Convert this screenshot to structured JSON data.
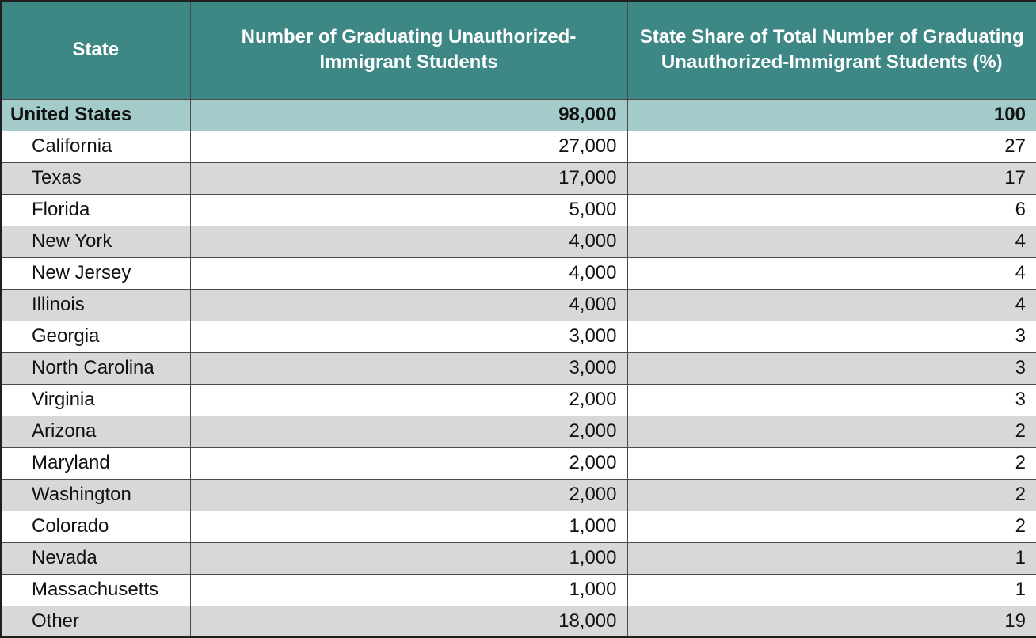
{
  "headers": {
    "state": "State",
    "count": "Number of Graduating Unauthorized-Immigrant Students",
    "share": "State Share of Total Number of Graduating Unauthorized-Immigrant Students (%)"
  },
  "total": {
    "state": "United States",
    "count": "98,000",
    "share": "100"
  },
  "rows": [
    {
      "state": "California",
      "count": "27,000",
      "share": "27"
    },
    {
      "state": "Texas",
      "count": "17,000",
      "share": "17"
    },
    {
      "state": "Florida",
      "count": "5,000",
      "share": "6"
    },
    {
      "state": "New York",
      "count": "4,000",
      "share": "4"
    },
    {
      "state": "New Jersey",
      "count": "4,000",
      "share": "4"
    },
    {
      "state": "Illinois",
      "count": "4,000",
      "share": "4"
    },
    {
      "state": "Georgia",
      "count": "3,000",
      "share": "3"
    },
    {
      "state": "North Carolina",
      "count": "3,000",
      "share": "3"
    },
    {
      "state": "Virginia",
      "count": "2,000",
      "share": "3"
    },
    {
      "state": "Arizona",
      "count": "2,000",
      "share": "2"
    },
    {
      "state": "Maryland",
      "count": "2,000",
      "share": "2"
    },
    {
      "state": "Washington",
      "count": "2,000",
      "share": "2"
    },
    {
      "state": "Colorado",
      "count": "1,000",
      "share": "2"
    },
    {
      "state": "Nevada",
      "count": "1,000",
      "share": "1"
    },
    {
      "state": "Massachusetts",
      "count": "1,000",
      "share": "1"
    },
    {
      "state": "Other",
      "count": "18,000",
      "share": "19"
    }
  ]
}
